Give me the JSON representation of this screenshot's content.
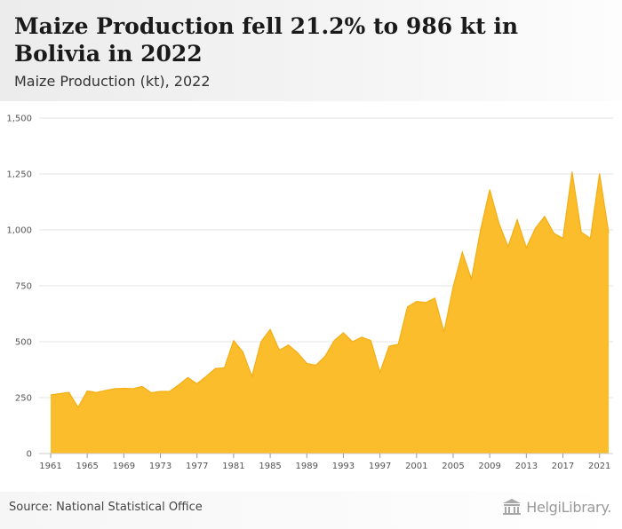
{
  "header": {
    "title": "Maize Production fell 21.2% to 986 kt in Bolivia in 2022",
    "subtitle": "Maize Production (kt), 2022"
  },
  "footer": {
    "source": "Source: National Statistical Office",
    "brand": "HelgiLibrary."
  },
  "colors": {
    "area_fill": "#fbbd2c",
    "area_stroke": "#f4ae12",
    "grid": "#e6e6e6",
    "axis": "#cccccc"
  },
  "chart_data": {
    "type": "area",
    "title": "Maize Production fell 21.2% to 986 kt in Bolivia in 2022",
    "subtitle": "Maize Production (kt), 2022",
    "xlabel": "",
    "ylabel": "",
    "ylim": [
      0,
      1500
    ],
    "grid": true,
    "legend": "none",
    "y_ticks": [
      0,
      250,
      500,
      750,
      1000,
      1250,
      1500
    ],
    "y_tick_labels": [
      "0",
      "250",
      "500",
      "750",
      "1,000",
      "1,250",
      "1,500"
    ],
    "x_ticks": [
      1961,
      1965,
      1969,
      1973,
      1977,
      1981,
      1985,
      1989,
      1993,
      1997,
      2001,
      2005,
      2009,
      2013,
      2017,
      2021
    ],
    "x": [
      1961,
      1962,
      1963,
      1964,
      1965,
      1966,
      1967,
      1968,
      1969,
      1970,
      1971,
      1972,
      1973,
      1974,
      1975,
      1976,
      1977,
      1978,
      1979,
      1980,
      1981,
      1982,
      1983,
      1984,
      1985,
      1986,
      1987,
      1988,
      1989,
      1990,
      1991,
      1992,
      1993,
      1994,
      1995,
      1996,
      1997,
      1998,
      1999,
      2000,
      2001,
      2002,
      2003,
      2004,
      2005,
      2006,
      2007,
      2008,
      2009,
      2010,
      2011,
      2012,
      2013,
      2014,
      2015,
      2016,
      2017,
      2018,
      2019,
      2020,
      2021,
      2022
    ],
    "series": [
      {
        "values": [
          262,
          268,
          273,
          206,
          280,
          273,
          282,
          290,
          292,
          290,
          300,
          272,
          278,
          278,
          307,
          340,
          312,
          345,
          380,
          383,
          505,
          455,
          345,
          500,
          555,
          462,
          485,
          450,
          403,
          395,
          435,
          505,
          540,
          500,
          520,
          505,
          363,
          480,
          488,
          655,
          680,
          675,
          695,
          543,
          745,
          900,
          780,
          1000,
          1180,
          1030,
          925,
          1045,
          920,
          1008,
          1060,
          985,
          962,
          1260,
          990,
          962,
          1252,
          986
        ]
      }
    ]
  }
}
